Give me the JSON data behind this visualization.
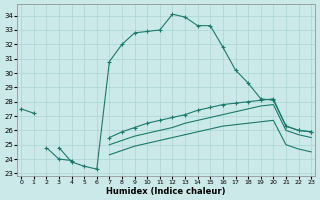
{
  "background_color": "#cce9e9",
  "grid_color": "#aad4d4",
  "line_color": "#1a7a6a",
  "xlabel": "Humidex (Indice chaleur)",
  "xlim": [
    -0.3,
    23.3
  ],
  "ylim": [
    22.8,
    34.8
  ],
  "xticks": [
    0,
    1,
    2,
    3,
    4,
    5,
    6,
    7,
    8,
    9,
    10,
    11,
    12,
    13,
    14,
    15,
    16,
    17,
    18,
    19,
    20,
    21,
    22,
    23
  ],
  "yticks": [
    23,
    24,
    25,
    26,
    27,
    28,
    29,
    30,
    31,
    32,
    33,
    34
  ],
  "series": [
    {
      "name": "main_arc",
      "x": [
        0,
        1,
        2,
        3,
        4,
        5,
        6,
        7,
        8,
        9,
        10,
        11,
        12,
        13,
        14,
        15,
        16,
        17,
        18,
        19,
        20,
        21,
        22,
        23
      ],
      "y": [
        27.5,
        27.2,
        null,
        null,
        null,
        null,
        null,
        null,
        null,
        null,
        null,
        null,
        null,
        null,
        null,
        null,
        null,
        null,
        null,
        null,
        null,
        null,
        null,
        null
      ],
      "marker": true
    },
    {
      "name": "arc_right",
      "x": [
        3,
        4,
        5,
        6,
        7,
        8,
        9,
        10,
        11,
        12,
        13,
        14,
        15,
        16,
        17,
        18,
        19,
        20,
        21,
        22,
        23
      ],
      "y": [
        24.8,
        23.8,
        23.5,
        23.3,
        30.8,
        32.0,
        32.8,
        32.9,
        33.0,
        34.1,
        33.9,
        33.3,
        33.3,
        31.8,
        30.2,
        29.3,
        28.2,
        28.1,
        26.3,
        26.0,
        25.9
      ],
      "marker": true
    },
    {
      "name": "diag_top",
      "x": [
        2,
        3,
        4,
        5,
        6,
        7,
        8,
        9,
        10,
        11,
        12,
        13,
        14,
        15,
        16,
        17,
        18,
        19,
        20,
        21,
        22,
        23
      ],
      "y": [
        24.8,
        24.0,
        23.9,
        null,
        null,
        25.5,
        25.9,
        26.2,
        26.5,
        26.7,
        26.9,
        27.1,
        27.4,
        27.6,
        27.8,
        27.9,
        28.0,
        28.1,
        28.2,
        26.3,
        26.0,
        25.9
      ],
      "marker": true
    },
    {
      "name": "diag_mid",
      "x": [
        7,
        8,
        9,
        10,
        11,
        12,
        13,
        14,
        15,
        16,
        17,
        18,
        19,
        20,
        21,
        22,
        23
      ],
      "y": [
        25.0,
        25.3,
        25.6,
        25.8,
        26.0,
        26.2,
        26.5,
        26.7,
        26.9,
        27.1,
        27.3,
        27.5,
        27.7,
        27.8,
        26.0,
        25.7,
        25.5
      ],
      "marker": false
    },
    {
      "name": "diag_bot",
      "x": [
        7,
        8,
        9,
        10,
        11,
        12,
        13,
        14,
        15,
        16,
        17,
        18,
        19,
        20,
        21,
        22,
        23
      ],
      "y": [
        24.3,
        24.6,
        24.9,
        25.1,
        25.3,
        25.5,
        25.7,
        25.9,
        26.1,
        26.3,
        26.4,
        26.5,
        26.6,
        26.7,
        25.0,
        24.7,
        24.5
      ],
      "marker": false
    }
  ]
}
